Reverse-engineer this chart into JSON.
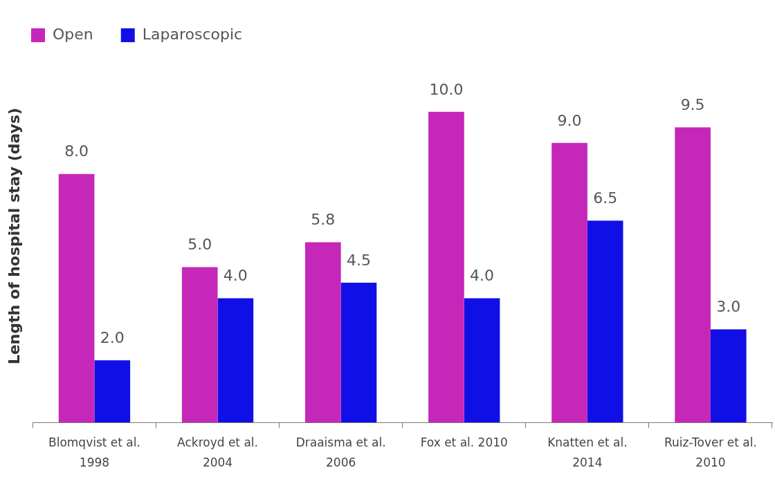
{
  "chart_data": {
    "type": "bar",
    "ylabel": "Length of hospital stay (days)",
    "categories": [
      "Blomqvist et al. 1998",
      "Ackroyd et al. 2004",
      "Draaisma et al. 2006",
      "Fox et al. 2010",
      "Knatten et al. 2014",
      "Ruiz-Tover et al. 2010"
    ],
    "series": [
      {
        "name": "Open",
        "color": "#c527b9",
        "values": [
          8.0,
          5.0,
          5.8,
          10.0,
          9.0,
          9.5
        ],
        "value_labels": [
          "8.0",
          "5.0",
          "5.8",
          "10.0",
          "9.0",
          "9.5"
        ]
      },
      {
        "name": "Laparoscopic",
        "color": "#1010e6",
        "values": [
          2.0,
          4.0,
          4.5,
          4.0,
          6.5,
          3.0
        ],
        "value_labels": [
          "2.0",
          "4.0",
          "4.5",
          "4.0",
          "6.5",
          "3.0"
        ]
      }
    ],
    "tick_labels": "x",
    "grid": false,
    "legend": "top left"
  }
}
